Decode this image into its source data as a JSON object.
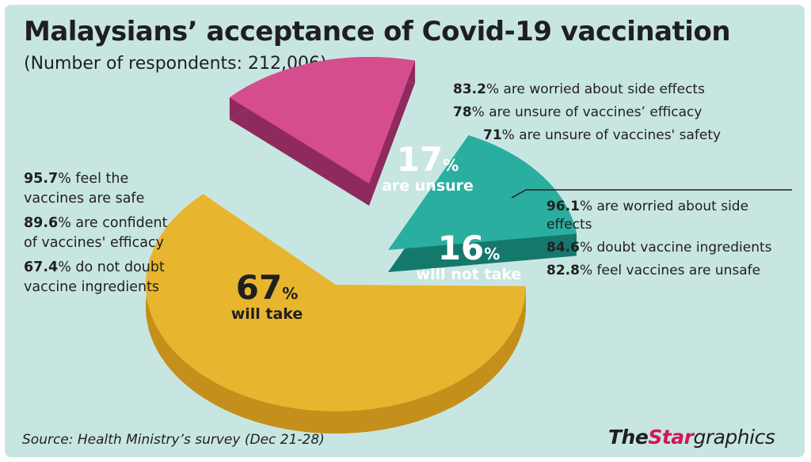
{
  "title": "Malaysians’ acceptance of Covid-19 vaccination",
  "subtitle": "(Number of respondents: 212,006)",
  "chart_data": {
    "type": "pie",
    "slices": [
      {
        "value": 67,
        "unit": "%",
        "label": "will take",
        "color": "#e8b52e"
      },
      {
        "value": 17,
        "unit": "%",
        "label": "are unsure",
        "color": "#d64d8f"
      },
      {
        "value": 16,
        "unit": "%",
        "label": "will not take",
        "color": "#2aaea0"
      }
    ]
  },
  "annotations": {
    "will_take": [
      {
        "pct": "95.7",
        "text": "% feel the vaccines are safe"
      },
      {
        "pct": "89.6",
        "text": "% are confident of vaccines' efficacy"
      },
      {
        "pct": "67.4",
        "text": "% do not doubt vaccine ingredients"
      }
    ],
    "unsure": [
      {
        "pct": "83.2",
        "text": "% are worried about side effects"
      },
      {
        "pct": "78",
        "text": "% are unsure of vaccines’ efficacy"
      },
      {
        "pct": "71",
        "text": "% are unsure of vaccines' safety"
      }
    ],
    "will_not_take": [
      {
        "pct": "96.1",
        "text": "% are worried about side effects"
      },
      {
        "pct": "84.6",
        "text": "% doubt vaccine ingredients"
      },
      {
        "pct": "82.8",
        "text": "% feel vaccines are unsafe"
      }
    ]
  },
  "source": "Source: Health Ministry’s survey (Dec 21-28)",
  "brand": {
    "part1": "The",
    "part2": "Star",
    "part3": "graphics"
  },
  "colors": {
    "background": "#c8e6e1",
    "will_take": "#e8b52e",
    "will_take_side": "#c48f1a",
    "unsure": "#d64d8f",
    "unsure_side": "#8e2a5e",
    "will_not_take": "#2aaea0",
    "will_not_take_side": "#15786d",
    "brand_accent": "#d4145a"
  }
}
